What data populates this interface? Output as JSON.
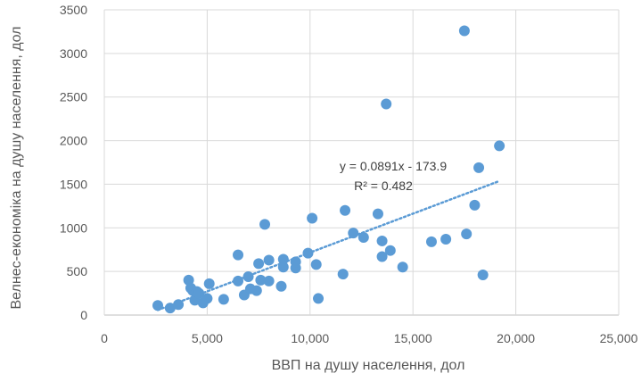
{
  "chart_data": {
    "type": "scatter",
    "title": "",
    "xlabel": "ВВП на душу населення, дол",
    "ylabel": "Велнес-економіка на душу населення, дол",
    "xlim": [
      0,
      25000
    ],
    "ylim": [
      0,
      3500
    ],
    "x_ticks": [
      0,
      5000,
      10000,
      15000,
      20000,
      25000
    ],
    "x_tick_labels": [
      "0",
      "5,000",
      "10,000",
      "15,000",
      "20,000",
      "25,000"
    ],
    "y_ticks": [
      0,
      500,
      1000,
      1500,
      2000,
      2500,
      3000,
      3500
    ],
    "y_tick_labels": [
      "0",
      "500",
      "1000",
      "1500",
      "2000",
      "2500",
      "3000",
      "3500"
    ],
    "grid": true,
    "marker_color": "#5b9bd5",
    "trendline": {
      "type": "linear",
      "slope": 0.0891,
      "intercept": -173.9,
      "x_range": [
        2600,
        19200
      ],
      "equation_label": "y = 0.0891x - 173.9",
      "r2_label": "R² = 0.482",
      "color": "#5b9bd5"
    },
    "points": [
      {
        "x": 2600,
        "y": 110
      },
      {
        "x": 3200,
        "y": 80
      },
      {
        "x": 3600,
        "y": 120
      },
      {
        "x": 4100,
        "y": 400
      },
      {
        "x": 4200,
        "y": 310
      },
      {
        "x": 4300,
        "y": 280
      },
      {
        "x": 4400,
        "y": 170
      },
      {
        "x": 4500,
        "y": 270
      },
      {
        "x": 4600,
        "y": 250
      },
      {
        "x": 4800,
        "y": 140
      },
      {
        "x": 5000,
        "y": 190
      },
      {
        "x": 5100,
        "y": 360
      },
      {
        "x": 5800,
        "y": 180
      },
      {
        "x": 6500,
        "y": 690
      },
      {
        "x": 6500,
        "y": 390
      },
      {
        "x": 6800,
        "y": 230
      },
      {
        "x": 7000,
        "y": 440
      },
      {
        "x": 7100,
        "y": 300
      },
      {
        "x": 7400,
        "y": 280
      },
      {
        "x": 7500,
        "y": 590
      },
      {
        "x": 7600,
        "y": 400
      },
      {
        "x": 7800,
        "y": 1040
      },
      {
        "x": 8000,
        "y": 630
      },
      {
        "x": 8000,
        "y": 390
      },
      {
        "x": 8600,
        "y": 330
      },
      {
        "x": 8700,
        "y": 640
      },
      {
        "x": 8700,
        "y": 550
      },
      {
        "x": 9300,
        "y": 540
      },
      {
        "x": 9300,
        "y": 610
      },
      {
        "x": 9900,
        "y": 710
      },
      {
        "x": 10100,
        "y": 1110
      },
      {
        "x": 10300,
        "y": 580
      },
      {
        "x": 10400,
        "y": 190
      },
      {
        "x": 11600,
        "y": 470
      },
      {
        "x": 11700,
        "y": 1200
      },
      {
        "x": 12100,
        "y": 940
      },
      {
        "x": 12600,
        "y": 890
      },
      {
        "x": 13300,
        "y": 1160
      },
      {
        "x": 13500,
        "y": 670
      },
      {
        "x": 13500,
        "y": 850
      },
      {
        "x": 13700,
        "y": 2420
      },
      {
        "x": 13900,
        "y": 740
      },
      {
        "x": 14500,
        "y": 550
      },
      {
        "x": 15900,
        "y": 840
      },
      {
        "x": 16600,
        "y": 870
      },
      {
        "x": 17500,
        "y": 3260
      },
      {
        "x": 17600,
        "y": 930
      },
      {
        "x": 18000,
        "y": 1260
      },
      {
        "x": 18200,
        "y": 1690
      },
      {
        "x": 18400,
        "y": 460
      },
      {
        "x": 19200,
        "y": 1940
      }
    ]
  }
}
